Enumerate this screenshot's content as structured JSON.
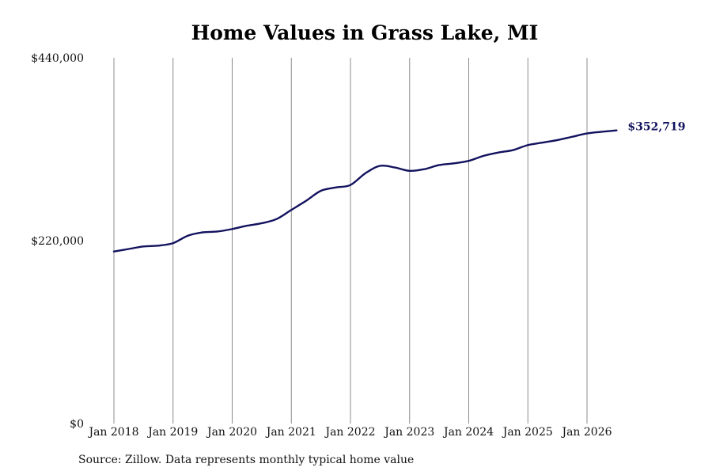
{
  "chart_data": {
    "type": "line",
    "title": "Home Values in Grass Lake, MI",
    "xlabel": "",
    "ylabel": "",
    "ylim": [
      0,
      440000
    ],
    "y_ticks": [
      0,
      220000,
      440000
    ],
    "y_tick_labels": [
      "$0",
      "$220,000",
      "$440,000"
    ],
    "x_ticks": [
      "2018-01",
      "2019-01",
      "2020-01",
      "2021-01",
      "2022-01",
      "2023-01",
      "2024-01",
      "2025-01",
      "2026-01"
    ],
    "x_tick_labels": [
      "Jan 2018",
      "Jan 2019",
      "Jan 2020",
      "Jan 2021",
      "Jan 2022",
      "Jan 2023",
      "Jan 2024",
      "Jan 2025",
      "Jan 2026"
    ],
    "grid": "vertical",
    "series": [
      {
        "color": "#12125e",
        "points": [
          [
            "2018-01",
            207000
          ],
          [
            "2018-04",
            210000
          ],
          [
            "2018-07",
            213000
          ],
          [
            "2018-10",
            214000
          ],
          [
            "2019-01",
            217000
          ],
          [
            "2019-04",
            226000
          ],
          [
            "2019-07",
            230000
          ],
          [
            "2019-10",
            231000
          ],
          [
            "2020-01",
            234000
          ],
          [
            "2020-04",
            238000
          ],
          [
            "2020-07",
            241000
          ],
          [
            "2020-10",
            246000
          ],
          [
            "2021-01",
            257000
          ],
          [
            "2021-04",
            268000
          ],
          [
            "2021-07",
            280000
          ],
          [
            "2021-10",
            284000
          ],
          [
            "2022-01",
            287000
          ],
          [
            "2022-04",
            301000
          ],
          [
            "2022-07",
            310000
          ],
          [
            "2022-10",
            308000
          ],
          [
            "2023-01",
            304000
          ],
          [
            "2023-04",
            306000
          ],
          [
            "2023-07",
            311000
          ],
          [
            "2023-10",
            313000
          ],
          [
            "2024-01",
            316000
          ],
          [
            "2024-04",
            322000
          ],
          [
            "2024-07",
            326000
          ],
          [
            "2024-10",
            329000
          ],
          [
            "2025-01",
            335000
          ],
          [
            "2025-04",
            338000
          ],
          [
            "2025-07",
            341000
          ],
          [
            "2025-10",
            345000
          ],
          [
            "2026-01",
            349000
          ],
          [
            "2026-04",
            351000
          ],
          [
            "2026-07",
            352719
          ]
        ]
      }
    ],
    "end_label": "$352,719",
    "source": "Source: Zillow. Data represents monthly typical home value"
  }
}
